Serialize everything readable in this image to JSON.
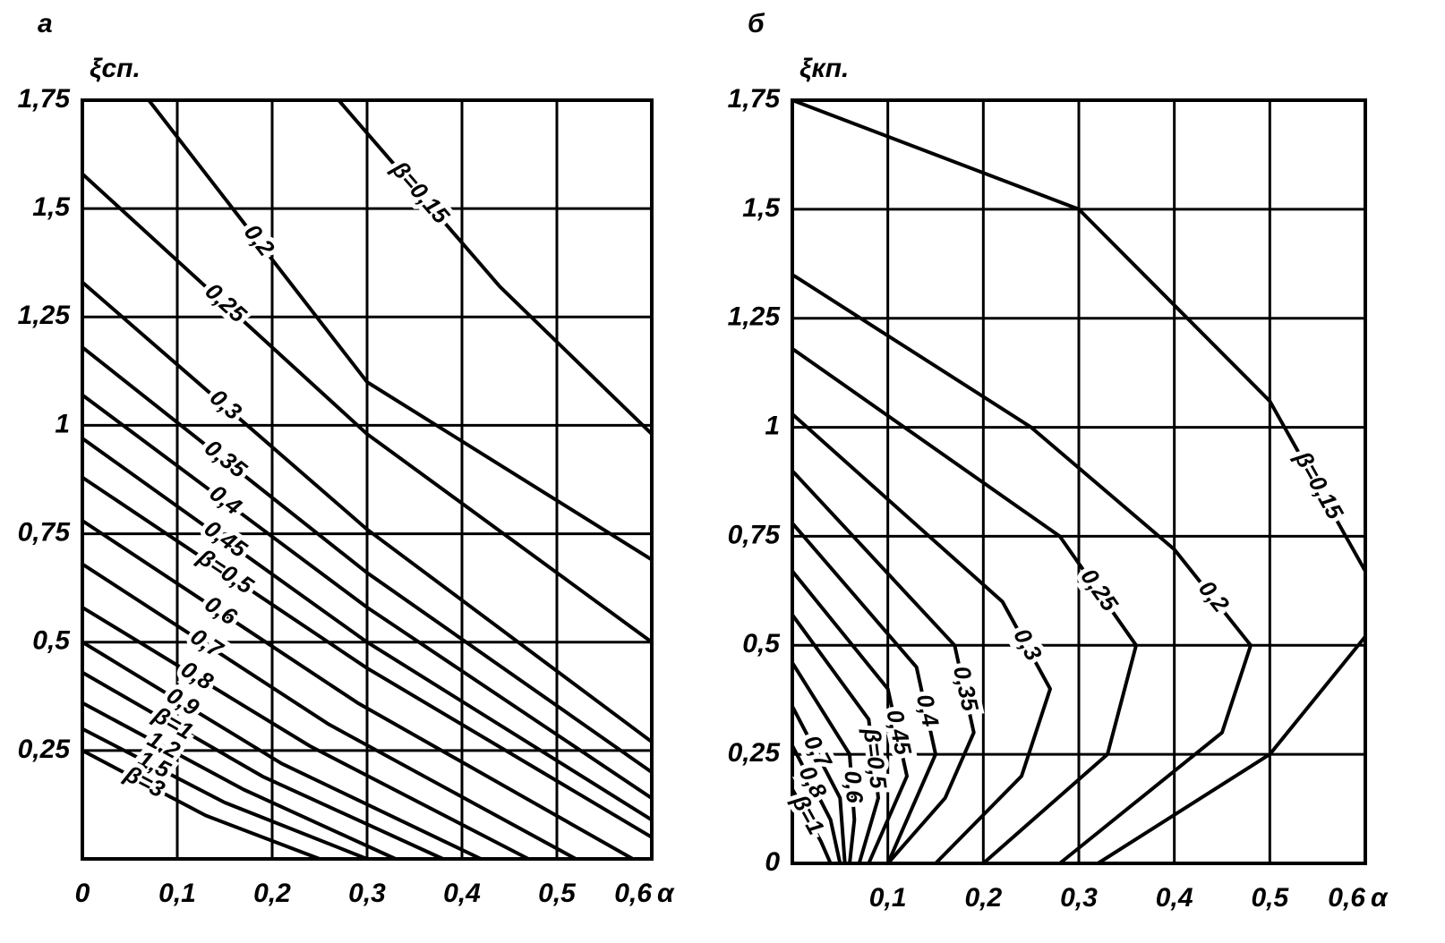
{
  "chart_data": [
    {
      "type": "line",
      "panel": "а",
      "y_label": "ξсп.",
      "x_label": "α",
      "xlim": [
        0,
        0.6
      ],
      "ylim": [
        0,
        1.75
      ],
      "grid": true,
      "xticks": [
        {
          "value": 0,
          "label": "0"
        },
        {
          "value": 0.1,
          "label": "0,1"
        },
        {
          "value": 0.2,
          "label": "0,2"
        },
        {
          "value": 0.3,
          "label": "0,3"
        },
        {
          "value": 0.4,
          "label": "0,4"
        },
        {
          "value": 0.5,
          "label": "0,5"
        },
        {
          "value": 0.6,
          "label": "0,6"
        }
      ],
      "yticks": [
        {
          "value": 0.25,
          "label": "0,25"
        },
        {
          "value": 0.5,
          "label": "0,5"
        },
        {
          "value": 0.75,
          "label": "0,75"
        },
        1,
        {
          "value": 1.25,
          "label": "1,25"
        },
        {
          "value": 1.5,
          "label": "1,5"
        },
        {
          "value": 1.75,
          "label": "1,75"
        }
      ],
      "series": [
        {
          "name": "β=0,15",
          "color": "#000000",
          "x": [
            0.27,
            0.44,
            0.6
          ],
          "values": [
            1.75,
            1.32,
            0.98
          ]
        },
        {
          "name": "0,2",
          "color": "#000000",
          "x": [
            0.07,
            0.3,
            0.6
          ],
          "values": [
            1.75,
            1.1,
            0.69
          ]
        },
        {
          "name": "0,25",
          "color": "#000000",
          "x": [
            0,
            0.3,
            0.6
          ],
          "values": [
            1.58,
            0.98,
            0.5
          ]
        },
        {
          "name": "0,3",
          "color": "#000000",
          "x": [
            0,
            0.3,
            0.6
          ],
          "values": [
            1.33,
            0.76,
            0.27
          ]
        },
        {
          "name": "0,35",
          "color": "#000000",
          "x": [
            0,
            0.3,
            0.6
          ],
          "values": [
            1.18,
            0.66,
            0.2
          ]
        },
        {
          "name": "0,4",
          "color": "#000000",
          "x": [
            0,
            0.3,
            0.6
          ],
          "values": [
            1.07,
            0.58,
            0.14
          ]
        },
        {
          "name": "0,45",
          "color": "#000000",
          "x": [
            0,
            0.3,
            0.6
          ],
          "values": [
            0.97,
            0.5,
            0.09
          ]
        },
        {
          "name": "β=0,5",
          "color": "#000000",
          "x": [
            0,
            0.3,
            0.6
          ],
          "values": [
            0.88,
            0.44,
            0.05
          ]
        },
        {
          "name": "0,6",
          "color": "#000000",
          "x": [
            0,
            0.29,
            0.58
          ],
          "values": [
            0.78,
            0.36,
            0
          ]
        },
        {
          "name": "0,7",
          "color": "#000000",
          "x": [
            0,
            0.26,
            0.52
          ],
          "values": [
            0.68,
            0.31,
            0
          ]
        },
        {
          "name": "0,8",
          "color": "#000000",
          "x": [
            0,
            0.24,
            0.47
          ],
          "values": [
            0.58,
            0.26,
            0
          ]
        },
        {
          "name": "0,9",
          "color": "#000000",
          "x": [
            0,
            0.21,
            0.42
          ],
          "values": [
            0.5,
            0.22,
            0
          ]
        },
        {
          "name": "β=1",
          "color": "#000000",
          "x": [
            0,
            0.19,
            0.38
          ],
          "values": [
            0.43,
            0.19,
            0
          ]
        },
        {
          "name": "1,2",
          "color": "#000000",
          "x": [
            0,
            0.17,
            0.33
          ],
          "values": [
            0.36,
            0.16,
            0
          ]
        },
        {
          "name": "1,5",
          "color": "#000000",
          "x": [
            0,
            0.15,
            0.3
          ],
          "values": [
            0.3,
            0.13,
            0
          ]
        },
        {
          "name": "β=3",
          "color": "#000000",
          "x": [
            0,
            0.13,
            0.25
          ],
          "values": [
            0.25,
            0.1,
            0
          ]
        }
      ]
    },
    {
      "type": "line",
      "panel": "б",
      "y_label": "ξкп.",
      "x_label": "α",
      "xlim": [
        0,
        0.6
      ],
      "ylim": [
        0,
        1.75
      ],
      "grid": true,
      "xticks": [
        {
          "value": 0.1,
          "label": "0,1"
        },
        {
          "value": 0.2,
          "label": "0,2"
        },
        {
          "value": 0.3,
          "label": "0,3"
        },
        {
          "value": 0.4,
          "label": "0,4"
        },
        {
          "value": 0.5,
          "label": "0,5"
        },
        {
          "value": 0.6,
          "label": "0,6"
        }
      ],
      "yticks": [
        0,
        {
          "value": 0.25,
          "label": "0,25"
        },
        {
          "value": 0.5,
          "label": "0,5"
        },
        {
          "value": 0.75,
          "label": "0,75"
        },
        1,
        {
          "value": 1.25,
          "label": "1,25"
        },
        {
          "value": 1.5,
          "label": "1,5"
        },
        {
          "value": 1.75,
          "label": "1,75"
        }
      ],
      "series": [
        {
          "name": "β=0,15",
          "color": "#000000",
          "x": [
            0,
            0.3,
            0.5,
            0.6,
            null,
            0.6,
            0.5,
            0.32
          ],
          "values": [
            1.75,
            1.5,
            1.06,
            0.67,
            null,
            0.52,
            0.25,
            0
          ]
        },
        {
          "name": "0,2",
          "color": "#000000",
          "x": [
            0,
            0.25,
            0.4,
            0.48,
            0.45,
            0.28
          ],
          "values": [
            1.35,
            1.0,
            0.72,
            0.5,
            0.3,
            0
          ]
        },
        {
          "name": "0,25",
          "color": "#000000",
          "x": [
            0,
            0.28,
            0.36,
            0.33,
            0.2
          ],
          "values": [
            1.18,
            0.75,
            0.5,
            0.25,
            0
          ]
        },
        {
          "name": "0,3",
          "color": "#000000",
          "x": [
            0,
            0.22,
            0.27,
            0.24,
            0.15
          ],
          "values": [
            1.03,
            0.6,
            0.4,
            0.2,
            0
          ]
        },
        {
          "name": "0,35",
          "color": "#000000",
          "x": [
            0,
            0.17,
            0.19,
            0.16,
            0.1
          ],
          "values": [
            0.9,
            0.5,
            0.3,
            0.15,
            0
          ]
        },
        {
          "name": "0,4",
          "color": "#000000",
          "x": [
            0,
            0.13,
            0.15,
            0.1
          ],
          "values": [
            0.78,
            0.45,
            0.25,
            0
          ]
        },
        {
          "name": "0,45",
          "color": "#000000",
          "x": [
            0,
            0.1,
            0.12,
            0.08
          ],
          "values": [
            0.67,
            0.4,
            0.2,
            0
          ]
        },
        {
          "name": "β=0,5",
          "color": "#000000",
          "x": [
            0,
            0.08,
            0.09,
            0.07
          ],
          "values": [
            0.57,
            0.33,
            0.15,
            0
          ]
        },
        {
          "name": "0,6",
          "color": "#000000",
          "x": [
            0,
            0.06,
            0.065,
            0.06
          ],
          "values": [
            0.46,
            0.25,
            0.1,
            0
          ]
        },
        {
          "name": "0,7",
          "color": "#000000",
          "x": [
            0,
            0.05,
            0.055
          ],
          "values": [
            0.36,
            0.15,
            0
          ]
        },
        {
          "name": "0,8",
          "color": "#000000",
          "x": [
            0,
            0.04,
            0.05
          ],
          "values": [
            0.27,
            0.1,
            0
          ]
        },
        {
          "name": "β=1",
          "color": "#000000",
          "x": [
            0,
            0.03,
            0.04
          ],
          "values": [
            0.17,
            0.05,
            0
          ]
        }
      ]
    }
  ]
}
